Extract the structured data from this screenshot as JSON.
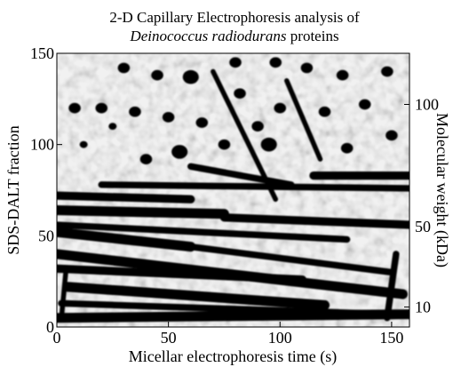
{
  "chart_data": {
    "type": "heatmap",
    "title": {
      "line1": "2-D Capillary Electrophoresis analysis of",
      "line2_italic": "Deinococcus radiodurans",
      "line2_rest": " proteins"
    },
    "xlabel": "Micellar electrophoresis time (s)",
    "ylabel": "SDS-DALT fraction",
    "y2label": "Molecular weight (kDa)",
    "xlim": [
      0,
      158
    ],
    "ylim": [
      0,
      150
    ],
    "x_ticks": [
      {
        "value": 0,
        "label": "0"
      },
      {
        "value": 50,
        "label": "50"
      },
      {
        "value": 100,
        "label": "100"
      },
      {
        "value": 150,
        "label": "150"
      }
    ],
    "y_ticks": [
      {
        "value": 0,
        "label": "0"
      },
      {
        "value": 50,
        "label": "50"
      },
      {
        "value": 100,
        "label": "100"
      },
      {
        "value": 150,
        "label": "150"
      }
    ],
    "y2_ticks": [
      {
        "value": 10,
        "fraction": 11,
        "label": "10"
      },
      {
        "value": 50,
        "fraction": 55,
        "label": "50"
      },
      {
        "value": 100,
        "fraction": 122,
        "label": "100"
      }
    ],
    "colormap": "grayscale (dark = high signal)",
    "bands": [
      {
        "x1": 0,
        "y1": 5,
        "x2": 158,
        "y2": 7,
        "w": 6
      },
      {
        "x1": 2,
        "y1": 13,
        "x2": 150,
        "y2": 7,
        "w": 4
      },
      {
        "x1": 5,
        "y1": 22,
        "x2": 120,
        "y2": 12,
        "w": 6
      },
      {
        "x1": 0,
        "y1": 32,
        "x2": 110,
        "y2": 26,
        "w": 5
      },
      {
        "x1": 0,
        "y1": 40,
        "x2": 155,
        "y2": 18,
        "w": 6
      },
      {
        "x1": 0,
        "y1": 52,
        "x2": 60,
        "y2": 44,
        "w": 6
      },
      {
        "x1": 60,
        "y1": 44,
        "x2": 150,
        "y2": 30,
        "w": 4
      },
      {
        "x1": 0,
        "y1": 56,
        "x2": 130,
        "y2": 48,
        "w": 4
      },
      {
        "x1": 0,
        "y1": 64,
        "x2": 75,
        "y2": 62,
        "w": 6
      },
      {
        "x1": 75,
        "y1": 60,
        "x2": 158,
        "y2": 56,
        "w": 5
      },
      {
        "x1": 0,
        "y1": 72,
        "x2": 60,
        "y2": 70,
        "w": 5
      },
      {
        "x1": 20,
        "y1": 78,
        "x2": 158,
        "y2": 76,
        "w": 4
      },
      {
        "x1": 115,
        "y1": 83,
        "x2": 158,
        "y2": 83,
        "w": 5
      },
      {
        "x1": 60,
        "y1": 88,
        "x2": 105,
        "y2": 78,
        "w": 4
      },
      {
        "x1": 70,
        "y1": 140,
        "x2": 98,
        "y2": 70,
        "w": 3
      },
      {
        "x1": 103,
        "y1": 135,
        "x2": 118,
        "y2": 92,
        "w": 3
      },
      {
        "x1": 2,
        "y1": 4,
        "x2": 4,
        "y2": 30,
        "w": 3
      },
      {
        "x1": 148,
        "y1": 5,
        "x2": 152,
        "y2": 40,
        "w": 4
      }
    ],
    "spots": [
      {
        "x": 8,
        "y": 120,
        "r": 3
      },
      {
        "x": 20,
        "y": 120,
        "r": 3
      },
      {
        "x": 35,
        "y": 118,
        "r": 3
      },
      {
        "x": 50,
        "y": 115,
        "r": 3
      },
      {
        "x": 65,
        "y": 112,
        "r": 3
      },
      {
        "x": 82,
        "y": 128,
        "r": 3
      },
      {
        "x": 60,
        "y": 137,
        "r": 4
      },
      {
        "x": 80,
        "y": 145,
        "r": 3
      },
      {
        "x": 98,
        "y": 145,
        "r": 3
      },
      {
        "x": 112,
        "y": 142,
        "r": 3
      },
      {
        "x": 45,
        "y": 138,
        "r": 3
      },
      {
        "x": 30,
        "y": 142,
        "r": 3
      },
      {
        "x": 128,
        "y": 138,
        "r": 3
      },
      {
        "x": 138,
        "y": 122,
        "r": 3
      },
      {
        "x": 120,
        "y": 118,
        "r": 3
      },
      {
        "x": 100,
        "y": 120,
        "r": 3
      },
      {
        "x": 150,
        "y": 105,
        "r": 3
      },
      {
        "x": 95,
        "y": 100,
        "r": 4
      },
      {
        "x": 55,
        "y": 96,
        "r": 4
      },
      {
        "x": 40,
        "y": 92,
        "r": 3
      },
      {
        "x": 75,
        "y": 100,
        "r": 3
      },
      {
        "x": 130,
        "y": 98,
        "r": 3
      },
      {
        "x": 12,
        "y": 100,
        "r": 2
      },
      {
        "x": 148,
        "y": 140,
        "r": 3
      },
      {
        "x": 25,
        "y": 110,
        "r": 2
      },
      {
        "x": 90,
        "y": 110,
        "r": 3
      }
    ]
  }
}
